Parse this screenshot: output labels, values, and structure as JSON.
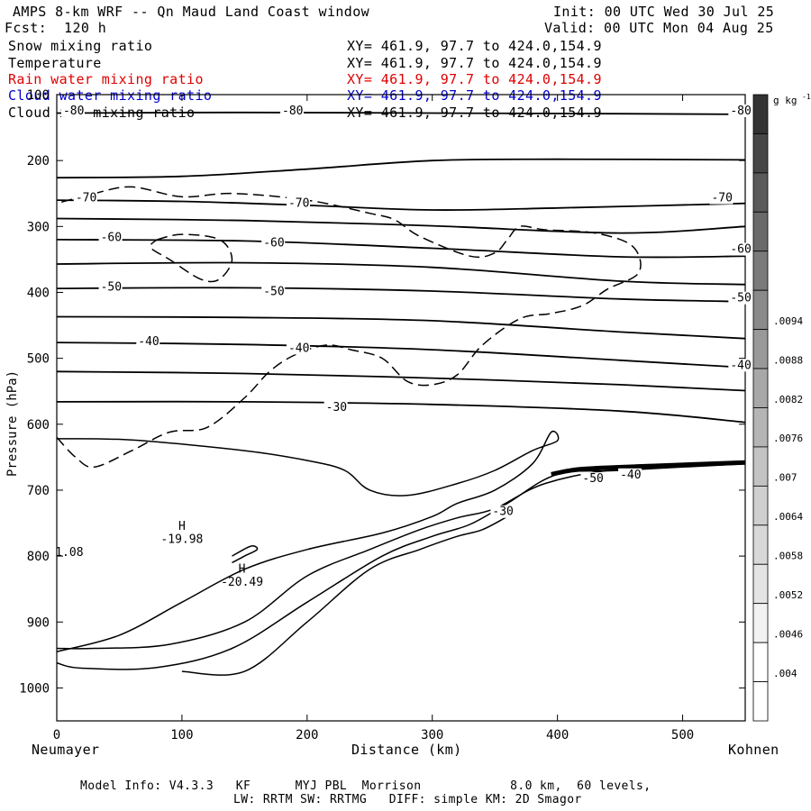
{
  "header": {
    "title": "AMPS 8-km WRF -- Qn Maud Land Coast window",
    "init": "Init: 00 UTC Wed 30 Jul 25",
    "fcst": "Fcst:  120 h",
    "valid": "Valid: 00 UTC Mon 04 Aug 25"
  },
  "fields": [
    {
      "name": "Snow mixing ratio",
      "xy": "XY= 461.9, 97.7 to 424.0,154.9",
      "color": "#000000"
    },
    {
      "name": "Temperature",
      "xy": "XY= 461.9, 97.7 to 424.0,154.9",
      "color": "#000000"
    },
    {
      "name": "Rain water mixing ratio",
      "xy": "XY= 461.9, 97.7 to 424.0,154.9",
      "color": "#e00000"
    },
    {
      "name": "Cloud water mixing ratio",
      "xy": "XY= 461.9, 97.7 to 424.0,154.9",
      "color": "#0000cc"
    },
    {
      "name": "Cloud ice mixing ratio",
      "xy": "XY= 461.9, 97.7 to 424.0,154.9",
      "color": "#000000"
    }
  ],
  "footer": {
    "line1": "Model Info: V4.3.3   KF      MYJ PBL  Morrison            8.0 km,  60 levels,",
    "line2": "LW: RRTM SW: RRTMG   DIFF: simple KM: 2D Smagor"
  },
  "chart_data": {
    "type": "contour",
    "ylabel": "Pressure (hPa)",
    "xlabel": "Distance (km)",
    "x_left_label": "Neumayer",
    "x_right_label": "Kohnen",
    "xlim": [
      0,
      550
    ],
    "ylim": [
      1050,
      100
    ],
    "xticks": [
      0,
      100,
      200,
      300,
      400,
      500
    ],
    "yticks": [
      100,
      200,
      300,
      400,
      500,
      600,
      700,
      800,
      900,
      1000
    ],
    "temperature_contours": [
      {
        "level": -80,
        "points": [
          [
            0,
            128
          ],
          [
            150,
            127
          ],
          [
            300,
            128
          ],
          [
            450,
            129
          ],
          [
            550,
            130
          ]
        ]
      },
      {
        "level": -75,
        "points": [
          [
            0,
            226
          ],
          [
            100,
            224
          ],
          [
            200,
            213
          ],
          [
            300,
            200
          ],
          [
            400,
            198
          ],
          [
            550,
            199
          ]
        ]
      },
      {
        "level": -70,
        "points": [
          [
            0,
            260
          ],
          [
            100,
            262
          ],
          [
            200,
            268
          ],
          [
            300,
            275
          ],
          [
            400,
            272
          ],
          [
            550,
            265
          ]
        ]
      },
      {
        "level": -65,
        "points": [
          [
            0,
            288
          ],
          [
            150,
            291
          ],
          [
            300,
            299
          ],
          [
            450,
            310
          ],
          [
            550,
            300
          ]
        ]
      },
      {
        "level": -60,
        "points": [
          [
            0,
            320
          ],
          [
            150,
            322
          ],
          [
            300,
            333
          ],
          [
            450,
            346
          ],
          [
            550,
            345
          ]
        ]
      },
      {
        "level": -55,
        "points": [
          [
            0,
            357
          ],
          [
            150,
            355
          ],
          [
            300,
            362
          ],
          [
            450,
            383
          ],
          [
            550,
            388
          ]
        ]
      },
      {
        "level": -50,
        "points": [
          [
            0,
            394
          ],
          [
            150,
            393
          ],
          [
            300,
            398
          ],
          [
            450,
            410
          ],
          [
            550,
            414
          ]
        ]
      },
      {
        "level": -45,
        "points": [
          [
            0,
            437
          ],
          [
            150,
            438
          ],
          [
            300,
            443
          ],
          [
            450,
            460
          ],
          [
            550,
            470
          ]
        ]
      },
      {
        "level": -40,
        "points": [
          [
            0,
            476
          ],
          [
            150,
            479
          ],
          [
            300,
            487
          ],
          [
            450,
            503
          ],
          [
            550,
            514
          ]
        ]
      },
      {
        "level": -35,
        "points": [
          [
            0,
            520
          ],
          [
            150,
            523
          ],
          [
            300,
            530
          ],
          [
            450,
            540
          ],
          [
            550,
            549
          ]
        ]
      },
      {
        "level": -30,
        "points": [
          [
            0,
            566
          ],
          [
            150,
            566
          ],
          [
            300,
            570
          ],
          [
            450,
            580
          ],
          [
            550,
            597
          ]
        ]
      }
    ],
    "snow_mixing_ratio_contours": [
      {
        "level": 0.004,
        "style": "dashed"
      }
    ],
    "annotations": [
      {
        "text": "H",
        "x": 100,
        "p": 760
      },
      {
        "text": "-19.98",
        "x": 100,
        "p": 780
      },
      {
        "text": "H",
        "x": 148,
        "p": 825
      },
      {
        "text": "-20.49",
        "x": 148,
        "p": 845
      },
      {
        "text": "1.08",
        "x": 10,
        "p": 800
      }
    ],
    "temperature_labels": [
      {
        "text": "-80",
        "x": 5,
        "p": 130
      },
      {
        "text": "-80",
        "x": 180,
        "p": 130
      },
      {
        "text": "-80",
        "x": 538,
        "p": 130
      },
      {
        "text": "-70",
        "x": 15,
        "p": 262
      },
      {
        "text": "-70",
        "x": 185,
        "p": 270
      },
      {
        "text": "-70",
        "x": 523,
        "p": 262
      },
      {
        "text": "-60",
        "x": 35,
        "p": 322
      },
      {
        "text": "-60",
        "x": 165,
        "p": 330
      },
      {
        "text": "-60",
        "x": 538,
        "p": 340
      },
      {
        "text": "-50",
        "x": 35,
        "p": 397
      },
      {
        "text": "-50",
        "x": 165,
        "p": 404
      },
      {
        "text": "-50",
        "x": 538,
        "p": 414
      },
      {
        "text": "-40",
        "x": 65,
        "p": 480
      },
      {
        "text": "-40",
        "x": 185,
        "p": 490
      },
      {
        "text": "-40",
        "x": 538,
        "p": 516
      },
      {
        "text": "-30",
        "x": 215,
        "p": 580
      },
      {
        "text": "-30",
        "x": 348,
        "p": 738
      },
      {
        "text": "-50",
        "x": 420,
        "p": 688
      },
      {
        "text": "-40",
        "x": 450,
        "p": 682
      }
    ],
    "colorbar": {
      "unit": "g kg",
      "unit_superscript": "-1",
      "labels": [
        ".004",
        ".0046",
        ".0052",
        ".0058",
        ".0064",
        ".007",
        ".0076",
        ".0082",
        ".0088",
        ".0094"
      ],
      "segment_colors": [
        "#ffffff",
        "#ffffff",
        "#f2f2f2",
        "#e4e4e4",
        "#d8d8d8",
        "#cfcfcf",
        "#c3c3c3",
        "#b5b5b5",
        "#a8a8a8",
        "#999999",
        "#8a8a8a",
        "#7a7a7a",
        "#6a6a6a",
        "#5a5a5a",
        "#474747",
        "#333333"
      ]
    }
  }
}
